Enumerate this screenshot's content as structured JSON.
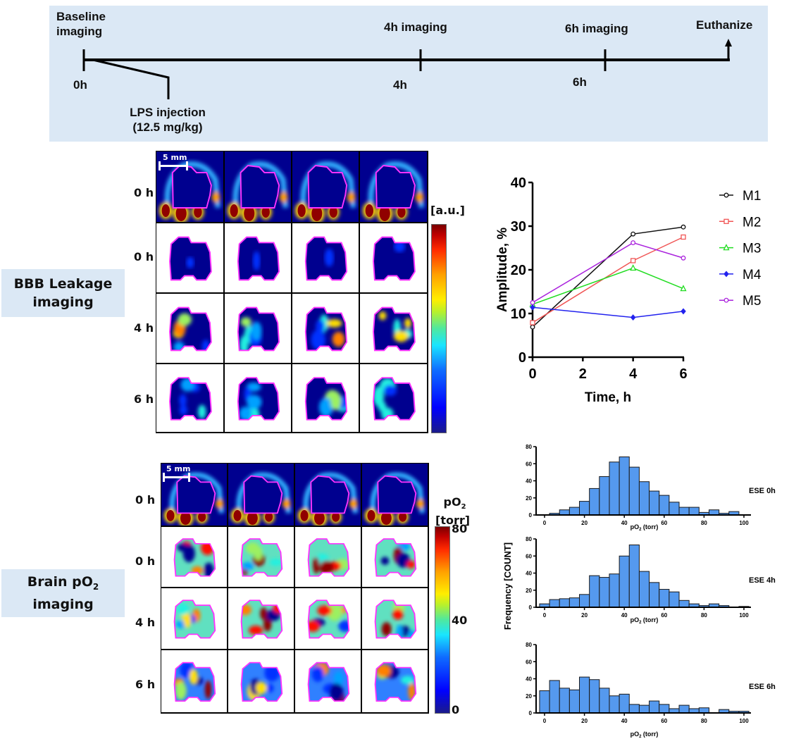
{
  "timeline": {
    "events": [
      {
        "label_line1": "Baseline",
        "label_line2": "imaging",
        "time": "0h"
      },
      {
        "label_line1": "4h imaging",
        "time": "4h"
      },
      {
        "label_line1": "6h imaging",
        "time": "6h"
      },
      {
        "label_line1": "Euthanize"
      }
    ],
    "injection": {
      "line1": "LPS injection",
      "line2": "(12.5 mg/kg)"
    },
    "background_color": "#dbe8f5"
  },
  "panels": {
    "bbb": {
      "title_line1": "BBB Leakage",
      "title_line2": "imaging",
      "row_labels": [
        "0 h",
        "0 h",
        "4 h",
        "6 h"
      ],
      "scale_bar": "5 mm",
      "colorbar_label": "[a.u.]",
      "columns": 4
    },
    "po2": {
      "title_line1_prefix": "Brain pO",
      "title_line1_sub": "2",
      "title_line2": "imaging",
      "row_labels": [
        "0 h",
        "0 h",
        "4 h",
        "6 h"
      ],
      "scale_bar": "5 mm",
      "colorbar_label_prefix": "pO",
      "colorbar_label_sub": "2",
      "colorbar_unit": "[torr]",
      "colorbar_ticks": [
        "80",
        "40",
        "0"
      ],
      "columns": 4
    }
  },
  "chart_data": [
    {
      "type": "line",
      "title": "",
      "xlabel": "Time, h",
      "ylabel": "Amplitude, %",
      "xlim": [
        0,
        6
      ],
      "ylim": [
        0,
        40
      ],
      "xticks": [
        0,
        2,
        4,
        6
      ],
      "yticks": [
        0,
        10,
        20,
        30,
        40
      ],
      "grid": false,
      "legend_position": "right",
      "x": [
        0,
        4,
        6
      ],
      "series": [
        {
          "name": "M1",
          "color": "#111111",
          "marker": "circle",
          "values": [
            6.9,
            28.2,
            29.8
          ]
        },
        {
          "name": "M2",
          "color": "#f05555",
          "marker": "square",
          "values": [
            7.9,
            22.1,
            27.5
          ]
        },
        {
          "name": "M3",
          "color": "#22dd22",
          "marker": "triangle",
          "values": [
            12.1,
            20.4,
            15.7
          ]
        },
        {
          "name": "M4",
          "color": "#2222ee",
          "marker": "diamond",
          "values": [
            11.4,
            9.1,
            10.5
          ]
        },
        {
          "name": "M5",
          "color": "#aa22dd",
          "marker": "circle",
          "values": [
            12.5,
            26.2,
            22.7
          ]
        }
      ]
    },
    {
      "type": "bar",
      "title": "ESE 0h",
      "xlabel_prefix": "pO",
      "xlabel_sub": "2",
      "xlabel_suffix": " (torr)",
      "ylabel": "Frequency [COUNT]",
      "bin_width": 5,
      "xlim": [
        0,
        100
      ],
      "ylim": [
        0,
        80
      ],
      "xticks": [
        0,
        20,
        40,
        60,
        80,
        100
      ],
      "yticks": [
        0,
        20,
        40,
        60,
        80
      ],
      "bar_color": "#5599ee",
      "categories": [
        0,
        5,
        10,
        15,
        20,
        25,
        30,
        35,
        40,
        45,
        50,
        55,
        60,
        65,
        70,
        75,
        80,
        85,
        90,
        95
      ],
      "values": [
        0,
        2,
        6,
        9,
        16,
        31,
        45,
        62,
        68,
        56,
        39,
        28,
        23,
        15,
        9,
        9,
        3,
        6,
        2,
        4
      ]
    },
    {
      "type": "bar",
      "title": "ESE 4h",
      "xlabel_prefix": "pO",
      "xlabel_sub": "2",
      "xlabel_suffix": " (torr)",
      "ylabel": "Frequency [COUNT]",
      "bin_width": 5,
      "xlim": [
        0,
        100
      ],
      "ylim": [
        0,
        80
      ],
      "xticks": [
        0,
        20,
        40,
        60,
        80,
        100
      ],
      "yticks": [
        0,
        20,
        40,
        60,
        80
      ],
      "bar_color": "#5599ee",
      "categories": [
        0,
        5,
        10,
        15,
        20,
        25,
        30,
        35,
        40,
        45,
        50,
        55,
        60,
        65,
        70,
        75,
        80,
        85,
        90,
        95,
        100
      ],
      "values": [
        4,
        9,
        10,
        11,
        15,
        37,
        35,
        39,
        60,
        73,
        42,
        29,
        21,
        18,
        8,
        4,
        2,
        4,
        2,
        0,
        1
      ]
    },
    {
      "type": "bar",
      "title": "ESE 6h",
      "xlabel_prefix": "pO",
      "xlabel_sub": "2",
      "xlabel_suffix": " (torr)",
      "ylabel": "Frequency [COUNT]",
      "bin_width": 5,
      "xlim": [
        0,
        100
      ],
      "ylim": [
        0,
        80
      ],
      "xticks": [
        0,
        20,
        40,
        60,
        80,
        100
      ],
      "yticks": [
        0,
        20,
        40,
        60,
        80
      ],
      "bar_color": "#5599ee",
      "categories": [
        0,
        5,
        10,
        15,
        20,
        25,
        30,
        35,
        40,
        45,
        50,
        55,
        60,
        65,
        70,
        75,
        80,
        85,
        90,
        95,
        100
      ],
      "values": [
        26,
        38,
        29,
        27,
        42,
        39,
        29,
        20,
        22,
        10,
        9,
        14,
        10,
        5,
        9,
        5,
        6,
        0,
        4,
        2,
        2
      ]
    }
  ]
}
